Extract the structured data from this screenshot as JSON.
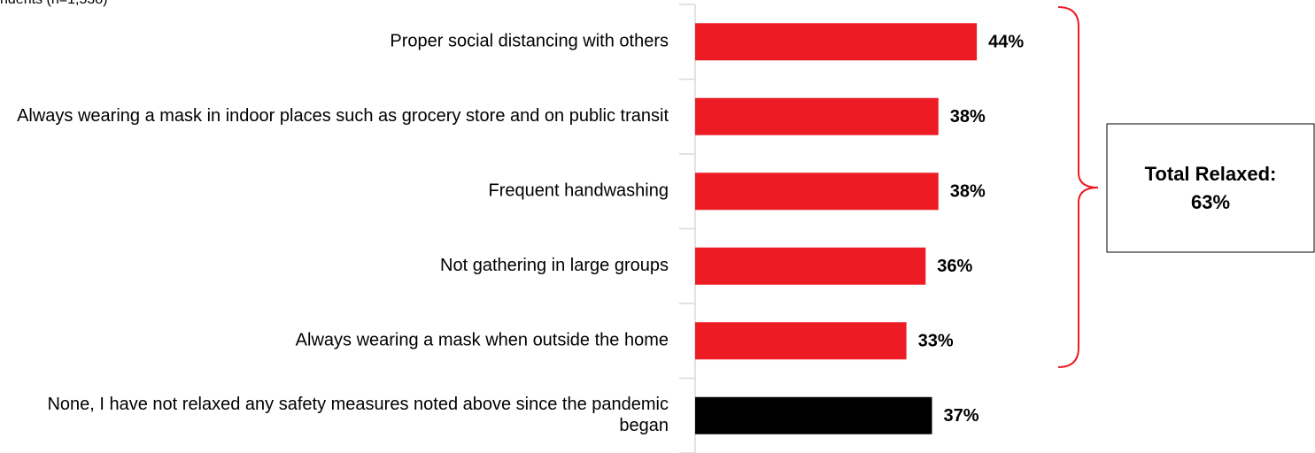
{
  "chart_data": {
    "type": "bar",
    "orientation": "horizontal",
    "subtitle": "ndents (n=1,538)",
    "categories": [
      "Proper social distancing with others",
      "Always wearing a mask in indoor places such as grocery store and on public transit",
      "Frequent handwashing",
      "Not gathering in large groups",
      "Always wearing a mask when outside the home",
      "None, I have not relaxed any safety measures noted above since the pandemic began"
    ],
    "values": [
      44,
      38,
      38,
      36,
      33,
      37
    ],
    "value_labels": [
      "44%",
      "38%",
      "38%",
      "36%",
      "33%",
      "37%"
    ],
    "colors": [
      "#ed1c24",
      "#ed1c24",
      "#ed1c24",
      "#ed1c24",
      "#ed1c24",
      "#000000"
    ],
    "annotation": {
      "title": "Total Relaxed:",
      "value": 63,
      "value_label": "63%"
    }
  }
}
